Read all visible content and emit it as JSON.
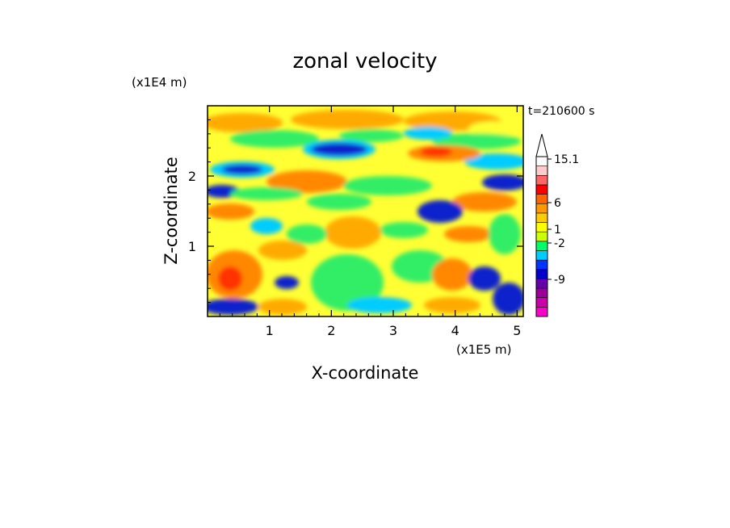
{
  "chart_data": {
    "type": "heatmap",
    "title": "zonal velocity",
    "xlabel": "X-coordinate",
    "ylabel": "Z-coordinate",
    "x_unit": "(x1E5 m)",
    "y_unit": "(x1E4 m)",
    "time_label": "t=210600 s",
    "xlim": [
      0,
      5.1
    ],
    "ylim": [
      0,
      3.0
    ],
    "x_ticks": [
      "1",
      "2",
      "3",
      "4",
      "5"
    ],
    "y_ticks": [
      "1",
      "2"
    ],
    "colorbar": {
      "tick_labels": [
        "15.1",
        "6",
        "1",
        "-2",
        "-9"
      ],
      "colors": [
        "#ff00cc",
        "#cc00aa",
        "#990099",
        "#6600aa",
        "#0000cc",
        "#0033ff",
        "#00ccff",
        "#00ff66",
        "#ccff00",
        "#ffff00",
        "#ffcc00",
        "#ff9900",
        "#ff6600",
        "#ff0000",
        "#ff6666",
        "#ffcccc",
        "#ffffff"
      ]
    }
  }
}
